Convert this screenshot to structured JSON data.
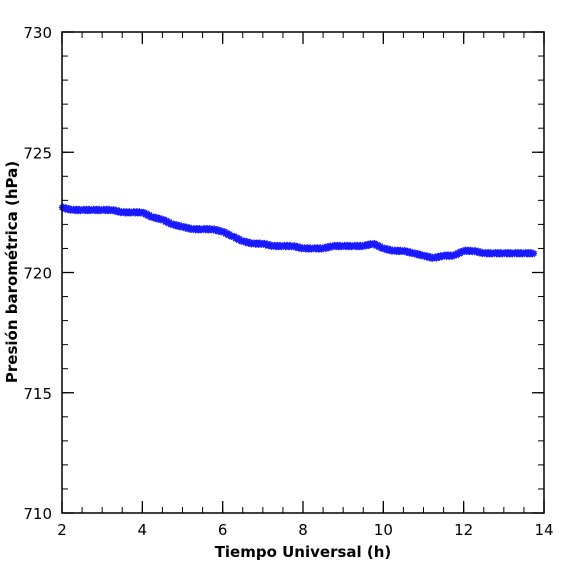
{
  "chart_data": {
    "type": "scatter",
    "title": "",
    "xlabel": "Tiempo Universal (h)",
    "ylabel": "Presión barométrica (hPa)",
    "xlim": [
      2,
      14
    ],
    "ylim": [
      710,
      730
    ],
    "xticks": [
      2,
      4,
      6,
      8,
      10,
      12,
      14
    ],
    "yticks": [
      710,
      715,
      720,
      725,
      730
    ],
    "x_minor_step": 0.5,
    "y_minor_step": 1,
    "grid": false,
    "marker": "star",
    "color": "#1a1aff",
    "series": [
      {
        "x": [
          2.0,
          2.25,
          2.5,
          2.75,
          3.0,
          3.25,
          3.5,
          3.75,
          4.0,
          4.25,
          4.5,
          4.75,
          5.0,
          5.25,
          5.5,
          5.75,
          6.0,
          6.25,
          6.5,
          6.75,
          7.0,
          7.25,
          7.5,
          7.75,
          8.0,
          8.25,
          8.5,
          8.75,
          9.0,
          9.25,
          9.5,
          9.75,
          10.0,
          10.25,
          10.5,
          10.75,
          11.0,
          11.25,
          11.5,
          11.75,
          12.0,
          12.25,
          12.5,
          12.75,
          13.0,
          13.25,
          13.5,
          13.75
        ],
        "y": [
          722.7,
          722.6,
          722.6,
          722.6,
          722.6,
          722.6,
          722.5,
          722.5,
          722.5,
          722.3,
          722.2,
          722.0,
          721.9,
          721.8,
          721.8,
          721.8,
          721.7,
          721.5,
          721.3,
          721.2,
          721.2,
          721.1,
          721.1,
          721.1,
          721.0,
          721.0,
          721.0,
          721.1,
          721.1,
          721.1,
          721.1,
          721.2,
          721.0,
          720.9,
          720.9,
          720.8,
          720.7,
          720.6,
          720.7,
          720.7,
          720.9,
          720.9,
          720.8,
          720.8,
          720.8,
          720.8,
          720.8,
          720.8
        ]
      }
    ]
  }
}
